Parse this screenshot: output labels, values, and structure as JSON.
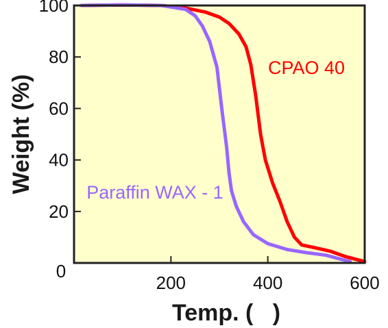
{
  "chart_data": {
    "type": "line",
    "xlabel": "Temp. (   )",
    "ylabel": "Weight (%)",
    "xlim": [
      0,
      600
    ],
    "ylim": [
      0,
      100
    ],
    "x_ticks": [
      200,
      400,
      600
    ],
    "y_ticks": [
      20,
      40,
      60,
      80,
      100
    ],
    "origin_label": "0",
    "grid": false,
    "legend": "inline",
    "plot_background": "#ffffcc",
    "series": [
      {
        "name": "CPAO 40",
        "color": "#ff0000",
        "x": [
          15,
          100,
          180,
          230,
          270,
          300,
          320,
          340,
          355,
          365,
          375,
          385,
          395,
          410,
          425,
          440,
          455,
          470,
          500,
          530,
          560,
          600
        ],
        "y": [
          100,
          100.2,
          100,
          99,
          97.5,
          95.5,
          93,
          89,
          84,
          77,
          65,
          50,
          40,
          31,
          24,
          16,
          10,
          7,
          5.8,
          4.5,
          2.5,
          0.5
        ]
      },
      {
        "name": "Paraffin WAX - 1",
        "color": "#9966ff",
        "x": [
          15,
          100,
          180,
          230,
          250,
          265,
          280,
          295,
          305,
          315,
          320,
          325,
          335,
          350,
          370,
          400,
          440,
          480,
          520,
          550,
          570
        ],
        "y": [
          100,
          100.2,
          100,
          98.5,
          96,
          92,
          86,
          76,
          60,
          45,
          35,
          28,
          22,
          16,
          11,
          7.5,
          5.2,
          4,
          3,
          1.5,
          0.5
        ]
      }
    ]
  }
}
